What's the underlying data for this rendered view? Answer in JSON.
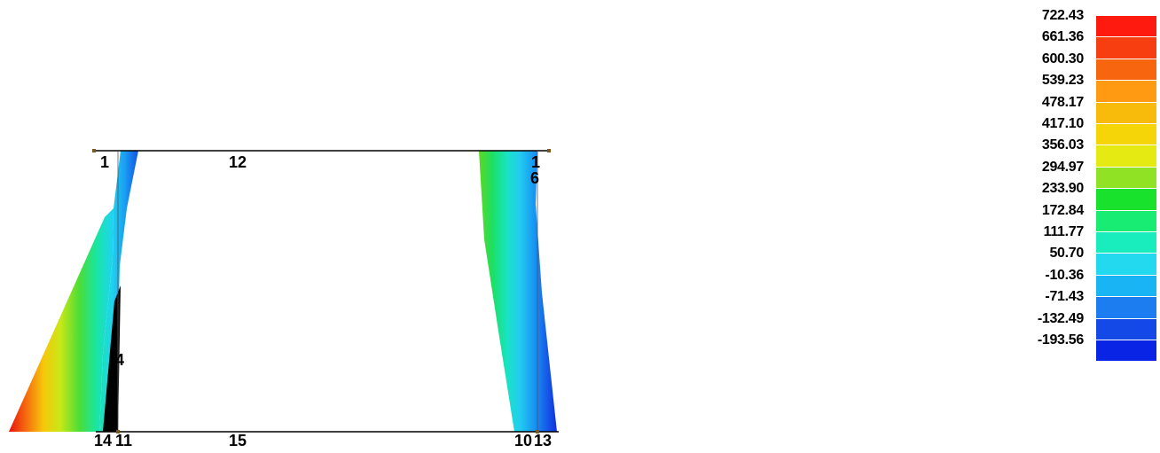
{
  "viewer": {
    "model_labels": {
      "n1_top_left": "1",
      "frame_top": "12",
      "n1_top_right": "1",
      "n6_right": "6",
      "n4_left": "4",
      "bottom_left_pair": "14",
      "bottom_left_node": "11",
      "frame_bottom": "15",
      "bottom_right_node": "10",
      "bottom_right_pair": "13"
    },
    "legend": {
      "values": [
        "722.43",
        "661.36",
        "600.30",
        "539.23",
        "478.17",
        "417.10",
        "356.03",
        "294.97",
        "233.90",
        "172.84",
        "111.77",
        "50.70",
        "-10.36",
        "-71.43",
        "-132.49",
        "-193.56"
      ],
      "colors": [
        "#ff1a0f",
        "#f73e10",
        "#f7650f",
        "#ff9a12",
        "#f9bb0b",
        "#f5d508",
        "#e4ea12",
        "#8fe224",
        "#18e22c",
        "#19ec73",
        "#19edbe",
        "#22d9ef",
        "#18b4f4",
        "#1c7df0",
        "#1449e8",
        "#0a24e6"
      ]
    }
  }
}
